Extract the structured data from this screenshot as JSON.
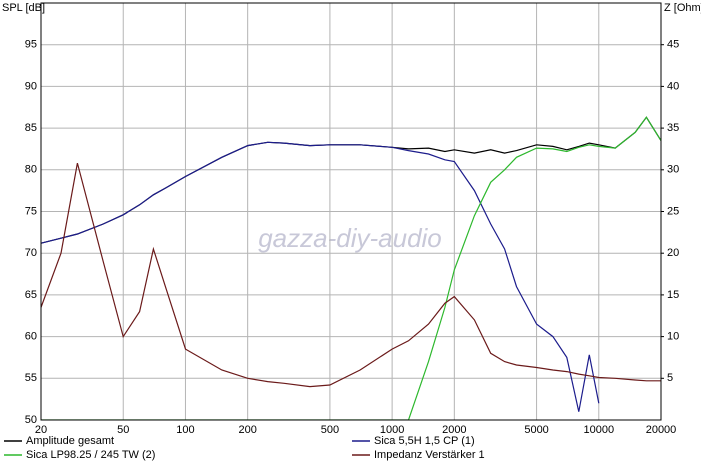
{
  "chart_data": {
    "type": "line",
    "ylabel": "SPL [dB]",
    "y2label": "Z [Ohm]",
    "watermark": "gazza-diy-audio",
    "xscale": "log",
    "xlim": [
      20,
      20000
    ],
    "xticks": [
      20,
      50,
      100,
      200,
      500,
      1000,
      2000,
      5000,
      10000,
      20000
    ],
    "ylim": [
      50,
      100
    ],
    "yticks": [
      50,
      55,
      60,
      65,
      70,
      75,
      80,
      85,
      90,
      95
    ],
    "y2lim": [
      0,
      50
    ],
    "y2ticks": [
      5,
      10,
      15,
      20,
      25,
      30,
      35,
      40,
      45
    ],
    "grid": true,
    "legend": "bottom",
    "x": [
      20,
      25,
      30,
      40,
      50,
      60,
      70,
      80,
      100,
      150,
      200,
      250,
      300,
      400,
      500,
      700,
      1000,
      1200,
      1500,
      1800,
      2000,
      2500,
      3000,
      3500,
      4000,
      5000,
      6000,
      7000,
      8000,
      9000,
      10000,
      12000,
      15000,
      17000,
      20000
    ],
    "series": [
      {
        "name": "Amplitude gesamt",
        "color": "#000000",
        "axis": "y",
        "values": [
          71.2,
          71.8,
          72.3,
          73.5,
          74.6,
          75.8,
          77,
          77.8,
          79.2,
          81.5,
          82.9,
          83.3,
          83.2,
          82.9,
          83,
          83,
          82.7,
          82.5,
          82.6,
          82.2,
          82.4,
          82,
          82.4,
          82,
          82.3,
          83,
          82.8,
          82.4,
          82.8,
          83.2,
          83,
          82.6,
          84.5,
          86.3,
          83.5
        ]
      },
      {
        "name": "Sica 5,5H 1,5 CP (1)",
        "color": "#1c1c8c",
        "axis": "y",
        "values": [
          71.2,
          71.8,
          72.3,
          73.5,
          74.6,
          75.8,
          77,
          77.8,
          79.2,
          81.5,
          82.9,
          83.3,
          83.2,
          82.9,
          83,
          83,
          82.7,
          82.3,
          81.9,
          81.2,
          81,
          77.5,
          73.5,
          70.5,
          66,
          61.5,
          60,
          57.5,
          51,
          57.8,
          52,
          null,
          null,
          null,
          null
        ]
      },
      {
        "name": "Sica LP98.25 / 245 TW (2)",
        "color": "#2db82d",
        "axis": "y",
        "values": [
          50,
          50,
          50,
          50,
          50,
          50,
          50,
          50,
          50,
          50,
          50,
          50,
          50,
          50,
          50,
          50,
          50,
          50,
          57,
          63.5,
          68,
          74.5,
          78.5,
          80,
          81.5,
          82.6,
          82.5,
          82.2,
          82.7,
          83,
          82.8,
          82.6,
          84.5,
          86.3,
          83.5
        ]
      },
      {
        "name": "Impedanz Verstärker 1",
        "color": "#6b1a1a",
        "axis": "y2",
        "values": [
          13.5,
          20,
          30.8,
          19,
          10,
          13,
          20.5,
          16,
          8.5,
          6,
          5,
          4.6,
          4.4,
          4,
          4.2,
          6,
          8.5,
          9.5,
          11.5,
          14,
          14.8,
          12,
          8,
          7,
          6.6,
          6.3,
          6,
          5.8,
          5.5,
          5.3,
          5.1,
          5,
          4.8,
          4.7,
          4.7
        ]
      }
    ]
  }
}
